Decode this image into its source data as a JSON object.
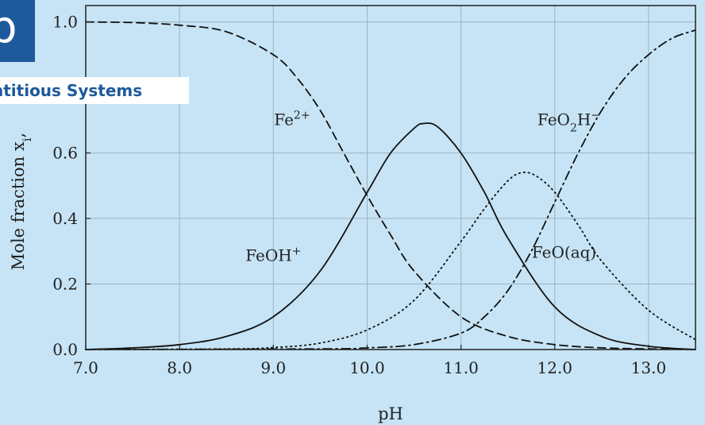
{
  "badge": {
    "text": "b"
  },
  "banner": {
    "text": "ntitious Systems"
  },
  "chart_data": {
    "type": "line",
    "xlabel": "pH",
    "ylabel": "Mole fraction x",
    "ylabel_sub": "i",
    "ylabel_suffix": ",",
    "xlim": [
      7.0,
      13.5
    ],
    "ylim": [
      0.0,
      1.05
    ],
    "xticks": [
      "7.0",
      "8.0",
      "9.0",
      "10.0",
      "11.0",
      "12.0",
      "13.0"
    ],
    "yticks": [
      "0.0",
      "0.2",
      "0.4",
      "0.6",
      "1.0"
    ],
    "grid": true,
    "series": [
      {
        "name": "Fe2+",
        "style": "dashed",
        "x": [
          7.0,
          7.5,
          8.0,
          8.5,
          9.0,
          9.25,
          9.5,
          9.75,
          10.0,
          10.25,
          10.5,
          11.0,
          11.5,
          12.0,
          12.5,
          13.0,
          13.5
        ],
        "y": [
          1.0,
          0.998,
          0.99,
          0.97,
          0.9,
          0.83,
          0.73,
          0.6,
          0.47,
          0.35,
          0.24,
          0.1,
          0.04,
          0.015,
          0.005,
          0.002,
          0.0
        ]
      },
      {
        "name": "FeOH+",
        "style": "solid",
        "x": [
          7.0,
          7.5,
          8.0,
          8.5,
          9.0,
          9.5,
          10.0,
          10.25,
          10.5,
          10.6,
          10.75,
          11.0,
          11.25,
          11.5,
          12.0,
          12.5,
          13.0,
          13.5
        ],
        "y": [
          0.0,
          0.005,
          0.015,
          0.04,
          0.1,
          0.24,
          0.48,
          0.6,
          0.675,
          0.69,
          0.68,
          0.6,
          0.48,
          0.34,
          0.13,
          0.04,
          0.01,
          0.0
        ]
      },
      {
        "name": "FeO(aq)",
        "style": "dotted",
        "x": [
          7.0,
          8.5,
          9.0,
          9.5,
          10.0,
          10.5,
          11.0,
          11.25,
          11.5,
          11.65,
          11.8,
          12.0,
          12.25,
          12.5,
          13.0,
          13.5
        ],
        "y": [
          0.0,
          0.002,
          0.006,
          0.02,
          0.06,
          0.15,
          0.33,
          0.43,
          0.515,
          0.54,
          0.53,
          0.48,
          0.38,
          0.27,
          0.12,
          0.03
        ]
      },
      {
        "name": "FeO2H-",
        "style": "dashdot",
        "x": [
          7.0,
          9.5,
          10.0,
          10.5,
          11.0,
          11.25,
          11.5,
          11.75,
          12.0,
          12.25,
          12.5,
          12.75,
          13.0,
          13.25,
          13.5
        ],
        "y": [
          0.0,
          0.002,
          0.005,
          0.015,
          0.05,
          0.1,
          0.18,
          0.3,
          0.45,
          0.6,
          0.73,
          0.83,
          0.9,
          0.95,
          0.975
        ]
      }
    ],
    "annotations": [
      {
        "base": "Fe",
        "sup": "2+",
        "x": 9.2,
        "y": 0.685
      },
      {
        "base": "FeO",
        "sub": "2",
        "base2": "H",
        "sup": "−",
        "x": 12.15,
        "y": 0.685
      },
      {
        "base": "FeOH",
        "sup": "+",
        "x": 9.0,
        "y": 0.27
      },
      {
        "base": "FeO(aq)",
        "x": 12.1,
        "y": 0.28
      }
    ]
  }
}
